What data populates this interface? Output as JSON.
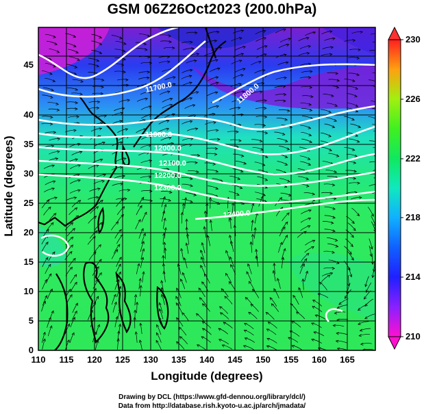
{
  "title": "GSM 06Z26Oct2023 (200.0hPa)",
  "xlabel": "Longitude (degrees)",
  "ylabel": "Latitude  (degrees)",
  "x_ticks": [
    "110",
    "115",
    "120",
    "125",
    "130",
    "135",
    "140",
    "145",
    "150",
    "155",
    "160",
    "165"
  ],
  "y_ticks": [
    "0",
    "5",
    "10",
    "15",
    "20",
    "25",
    "30",
    "35",
    "40",
    "45"
  ],
  "colorbar": {
    "ticks": [
      "210",
      "214",
      "218",
      "222",
      "226",
      "230"
    ],
    "colors": [
      "#ff00ff",
      "#0000ff",
      "#00ffff",
      "#00ff00",
      "#ffff00",
      "#ff0000"
    ]
  },
  "contours": [
    {
      "label": "11700.0"
    },
    {
      "label": "11800.0"
    },
    {
      "label": "11900.0"
    },
    {
      "label": "12000.0"
    },
    {
      "label": "12100.0"
    },
    {
      "label": "12200.0"
    },
    {
      "label": "12300.0"
    },
    {
      "label": "12400.0"
    }
  ],
  "credit1": "Drawing by DCL (https://www.gfd-dennou.org/library/dcl/)",
  "credit2": "Data from http://database.rish.kyoto-u.ac.jp/arch/jmadata/"
}
